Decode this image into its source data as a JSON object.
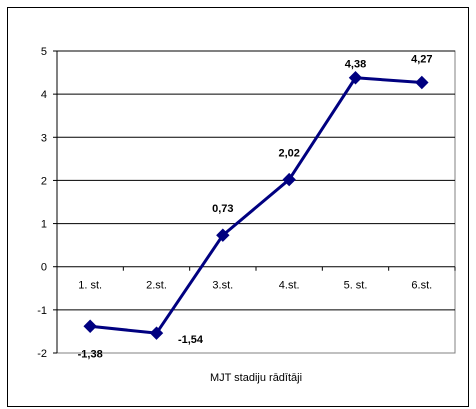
{
  "chart_data": {
    "type": "line",
    "categories": [
      "1. st.",
      "2.st.",
      "3.st.",
      "4.st.",
      "5. st.",
      "6.st."
    ],
    "series": [
      {
        "values": [
          -1.38,
          -1.54,
          0.73,
          2.02,
          4.38,
          4.27
        ],
        "data_labels": [
          "-1,38",
          "-1,54",
          "0,73",
          "2,02",
          "4,38",
          "4,27"
        ],
        "color": "#000080",
        "marker": "diamond"
      }
    ],
    "title": "",
    "xlabel": "MJT stadiju rādītāji",
    "ylabel": "",
    "ylim": [
      -2,
      5
    ],
    "yticks": [
      5,
      4,
      3,
      2,
      1,
      0,
      -1,
      -2
    ],
    "grid": true,
    "legend": "none"
  }
}
